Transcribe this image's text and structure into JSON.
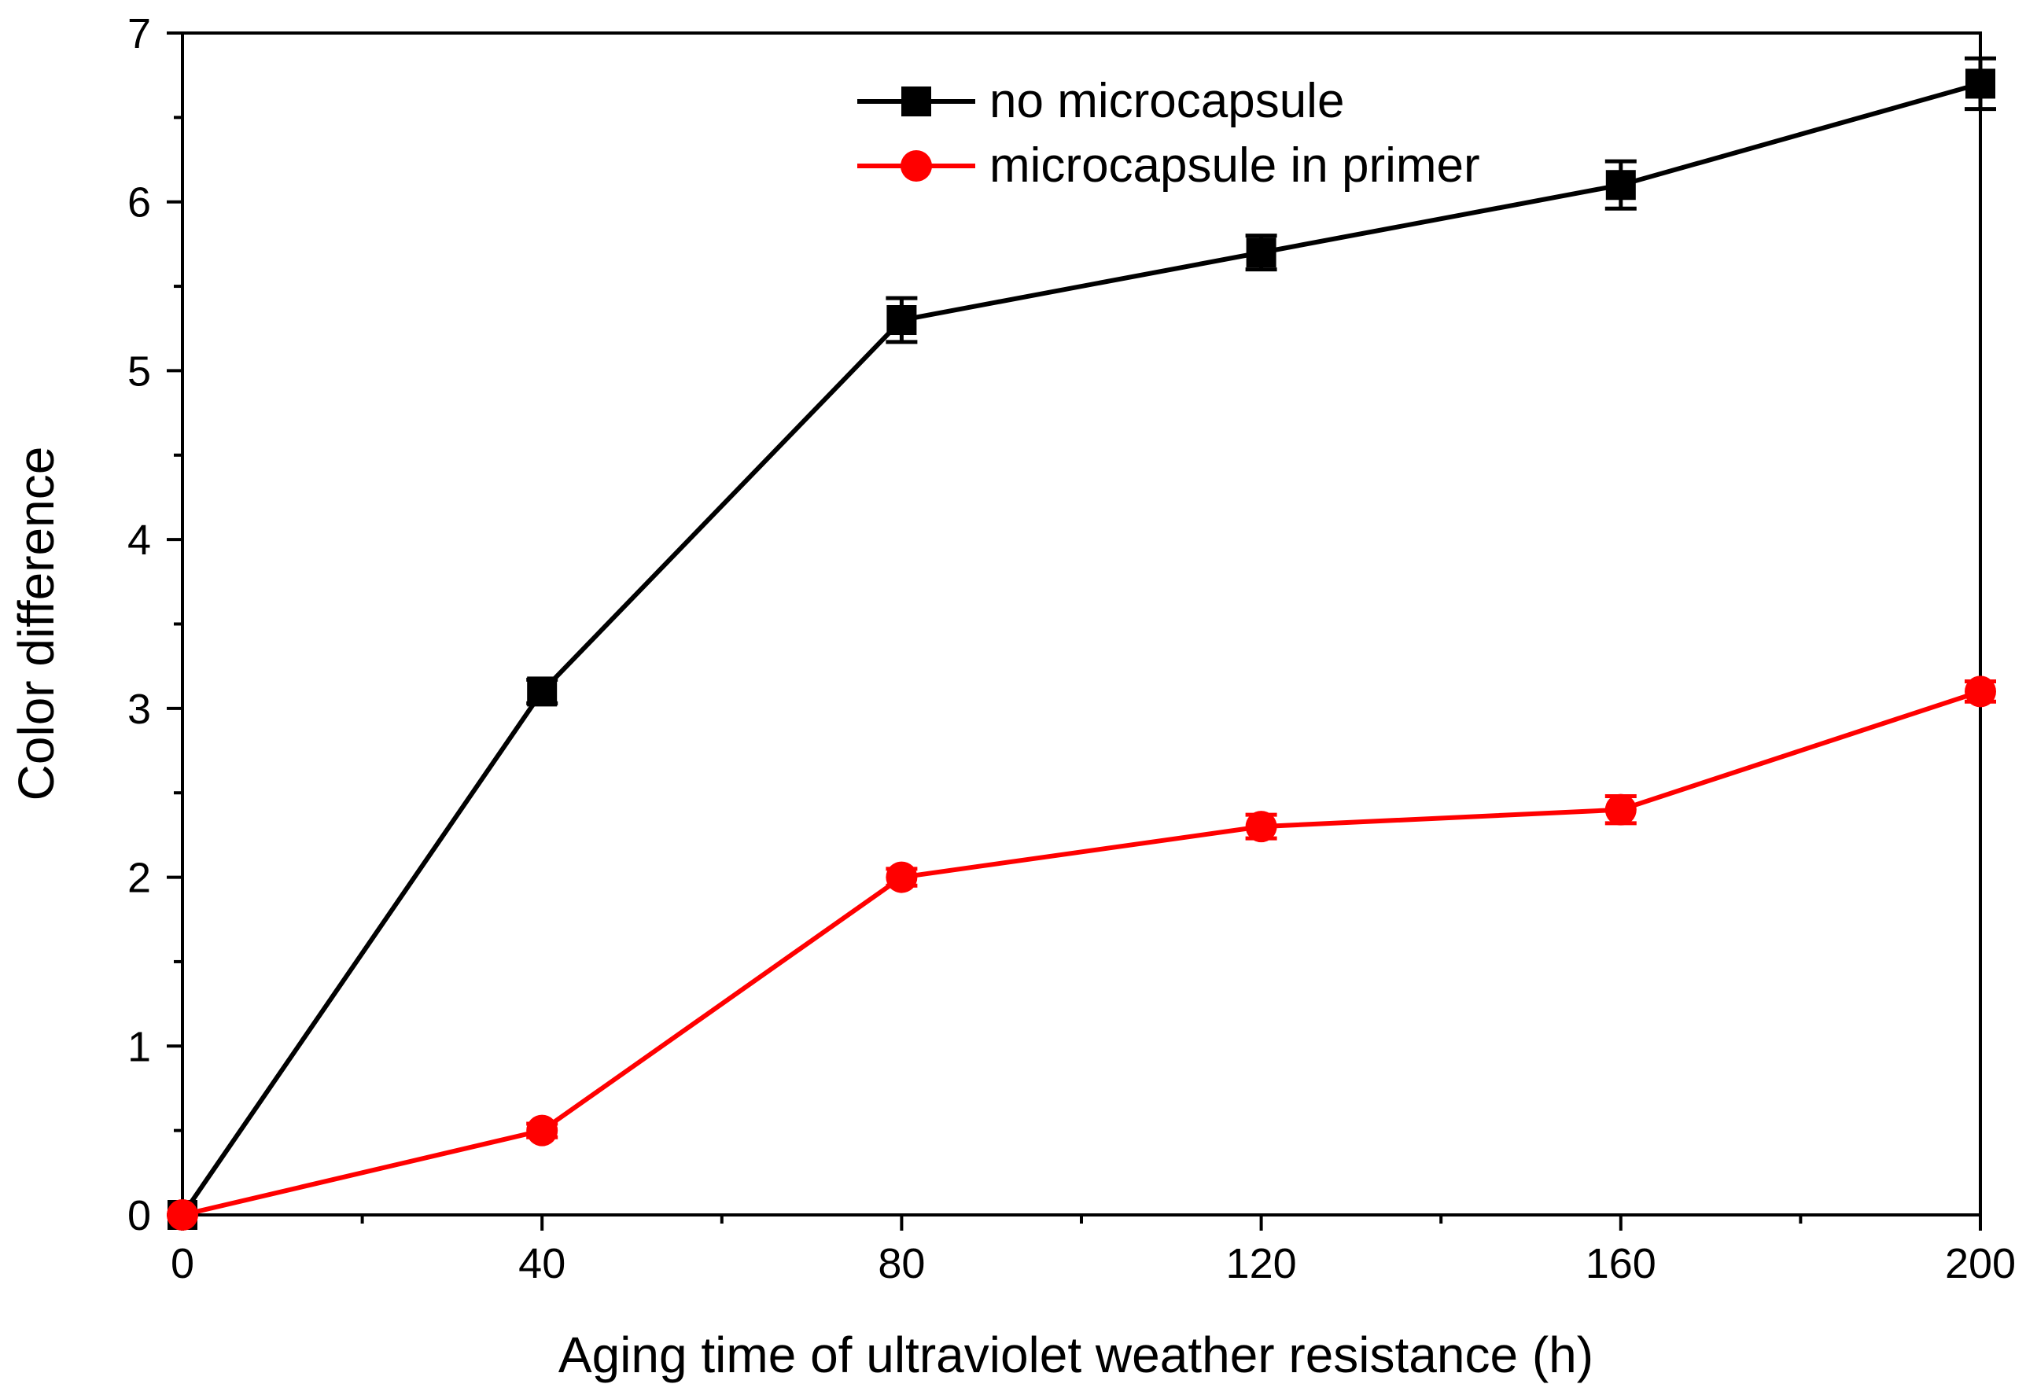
{
  "chart_data": {
    "type": "line",
    "title": "",
    "xlabel": "Aging time of ultraviolet weather resistance (h)",
    "ylabel": "Color difference",
    "xlim": [
      0,
      200
    ],
    "ylim": [
      0,
      7
    ],
    "x_ticks": [
      "0",
      "40",
      "80",
      "120",
      "160",
      "200"
    ],
    "y_ticks": [
      "0",
      "1",
      "2",
      "3",
      "4",
      "5",
      "6",
      "7"
    ],
    "x_tick_values": [
      0,
      40,
      80,
      120,
      160,
      200
    ],
    "y_tick_values": [
      0,
      1,
      2,
      3,
      4,
      5,
      6,
      7
    ],
    "x_minor_step": 20,
    "y_minor_step": 0.5,
    "grid": false,
    "legend_position": "top-center",
    "x": [
      0,
      40,
      80,
      120,
      160,
      200
    ],
    "series": [
      {
        "name": "no microcapsule",
        "values": [
          0,
          3.1,
          5.3,
          5.7,
          6.1,
          6.7
        ],
        "errors": [
          0,
          0.07,
          0.13,
          0.1,
          0.14,
          0.15
        ],
        "color": "#000000",
        "marker": "square"
      },
      {
        "name": "microcapsule in primer",
        "values": [
          0,
          0.5,
          2.0,
          2.3,
          2.4,
          3.1
        ],
        "errors": [
          0,
          0.04,
          0.05,
          0.07,
          0.08,
          0.06
        ],
        "color": "#ff0000",
        "marker": "circle"
      }
    ]
  }
}
